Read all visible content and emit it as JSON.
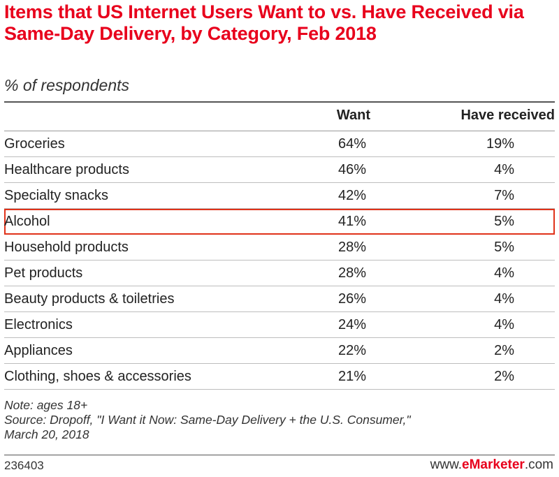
{
  "chart_data": {
    "type": "table",
    "title": "Items that US Internet Users Want to vs. Have Received via Same-Day Delivery, by Category, Feb 2018",
    "subtitle": "% of respondents",
    "columns": [
      "Want",
      "Have received"
    ],
    "rows": [
      {
        "category": "Groceries",
        "want": "64%",
        "have": "19%"
      },
      {
        "category": "Healthcare products",
        "want": "46%",
        "have": "4%"
      },
      {
        "category": "Specialty snacks",
        "want": "42%",
        "have": "7%"
      },
      {
        "category": "Alcohol",
        "want": "41%",
        "have": "5%",
        "highlighted": true
      },
      {
        "category": "Household products",
        "want": "28%",
        "have": "5%"
      },
      {
        "category": "Pet products",
        "want": "28%",
        "have": "4%"
      },
      {
        "category": "Beauty products & toiletries",
        "want": "26%",
        "have": "4%"
      },
      {
        "category": "Electronics",
        "want": "24%",
        "have": "4%"
      },
      {
        "category": "Appliances",
        "want": "22%",
        "have": "2%"
      },
      {
        "category": "Clothing, shoes & accessories",
        "want": "21%",
        "have": "2%"
      }
    ],
    "highlight_color": "#e0321a"
  },
  "footer": {
    "note": "Note: ages 18+",
    "source": "Source: Dropoff, \"I Want it Now: Same-Day Delivery + the U.S. Consumer,\"",
    "source_date": "March 20, 2018",
    "chart_id": "236403",
    "brand_prefix": "www.",
    "brand_name": "eMarketer",
    "brand_suffix": ".com"
  },
  "colors": {
    "title": "#e8001c",
    "text": "#222222",
    "highlight": "#e0321a"
  }
}
